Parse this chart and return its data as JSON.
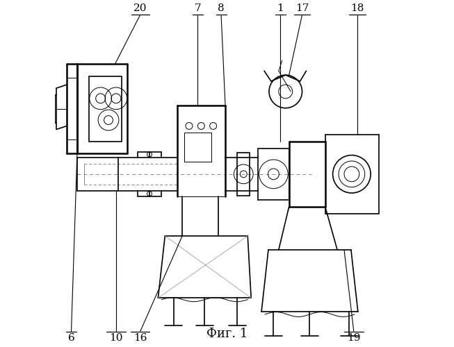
{
  "title": "Фиг. 1",
  "bg_color": "#ffffff",
  "line_color": "#000000",
  "light_line_color": "#555555",
  "dashed_color": "#888888",
  "figsize": [
    6.53,
    5.0
  ],
  "dpi": 100
}
